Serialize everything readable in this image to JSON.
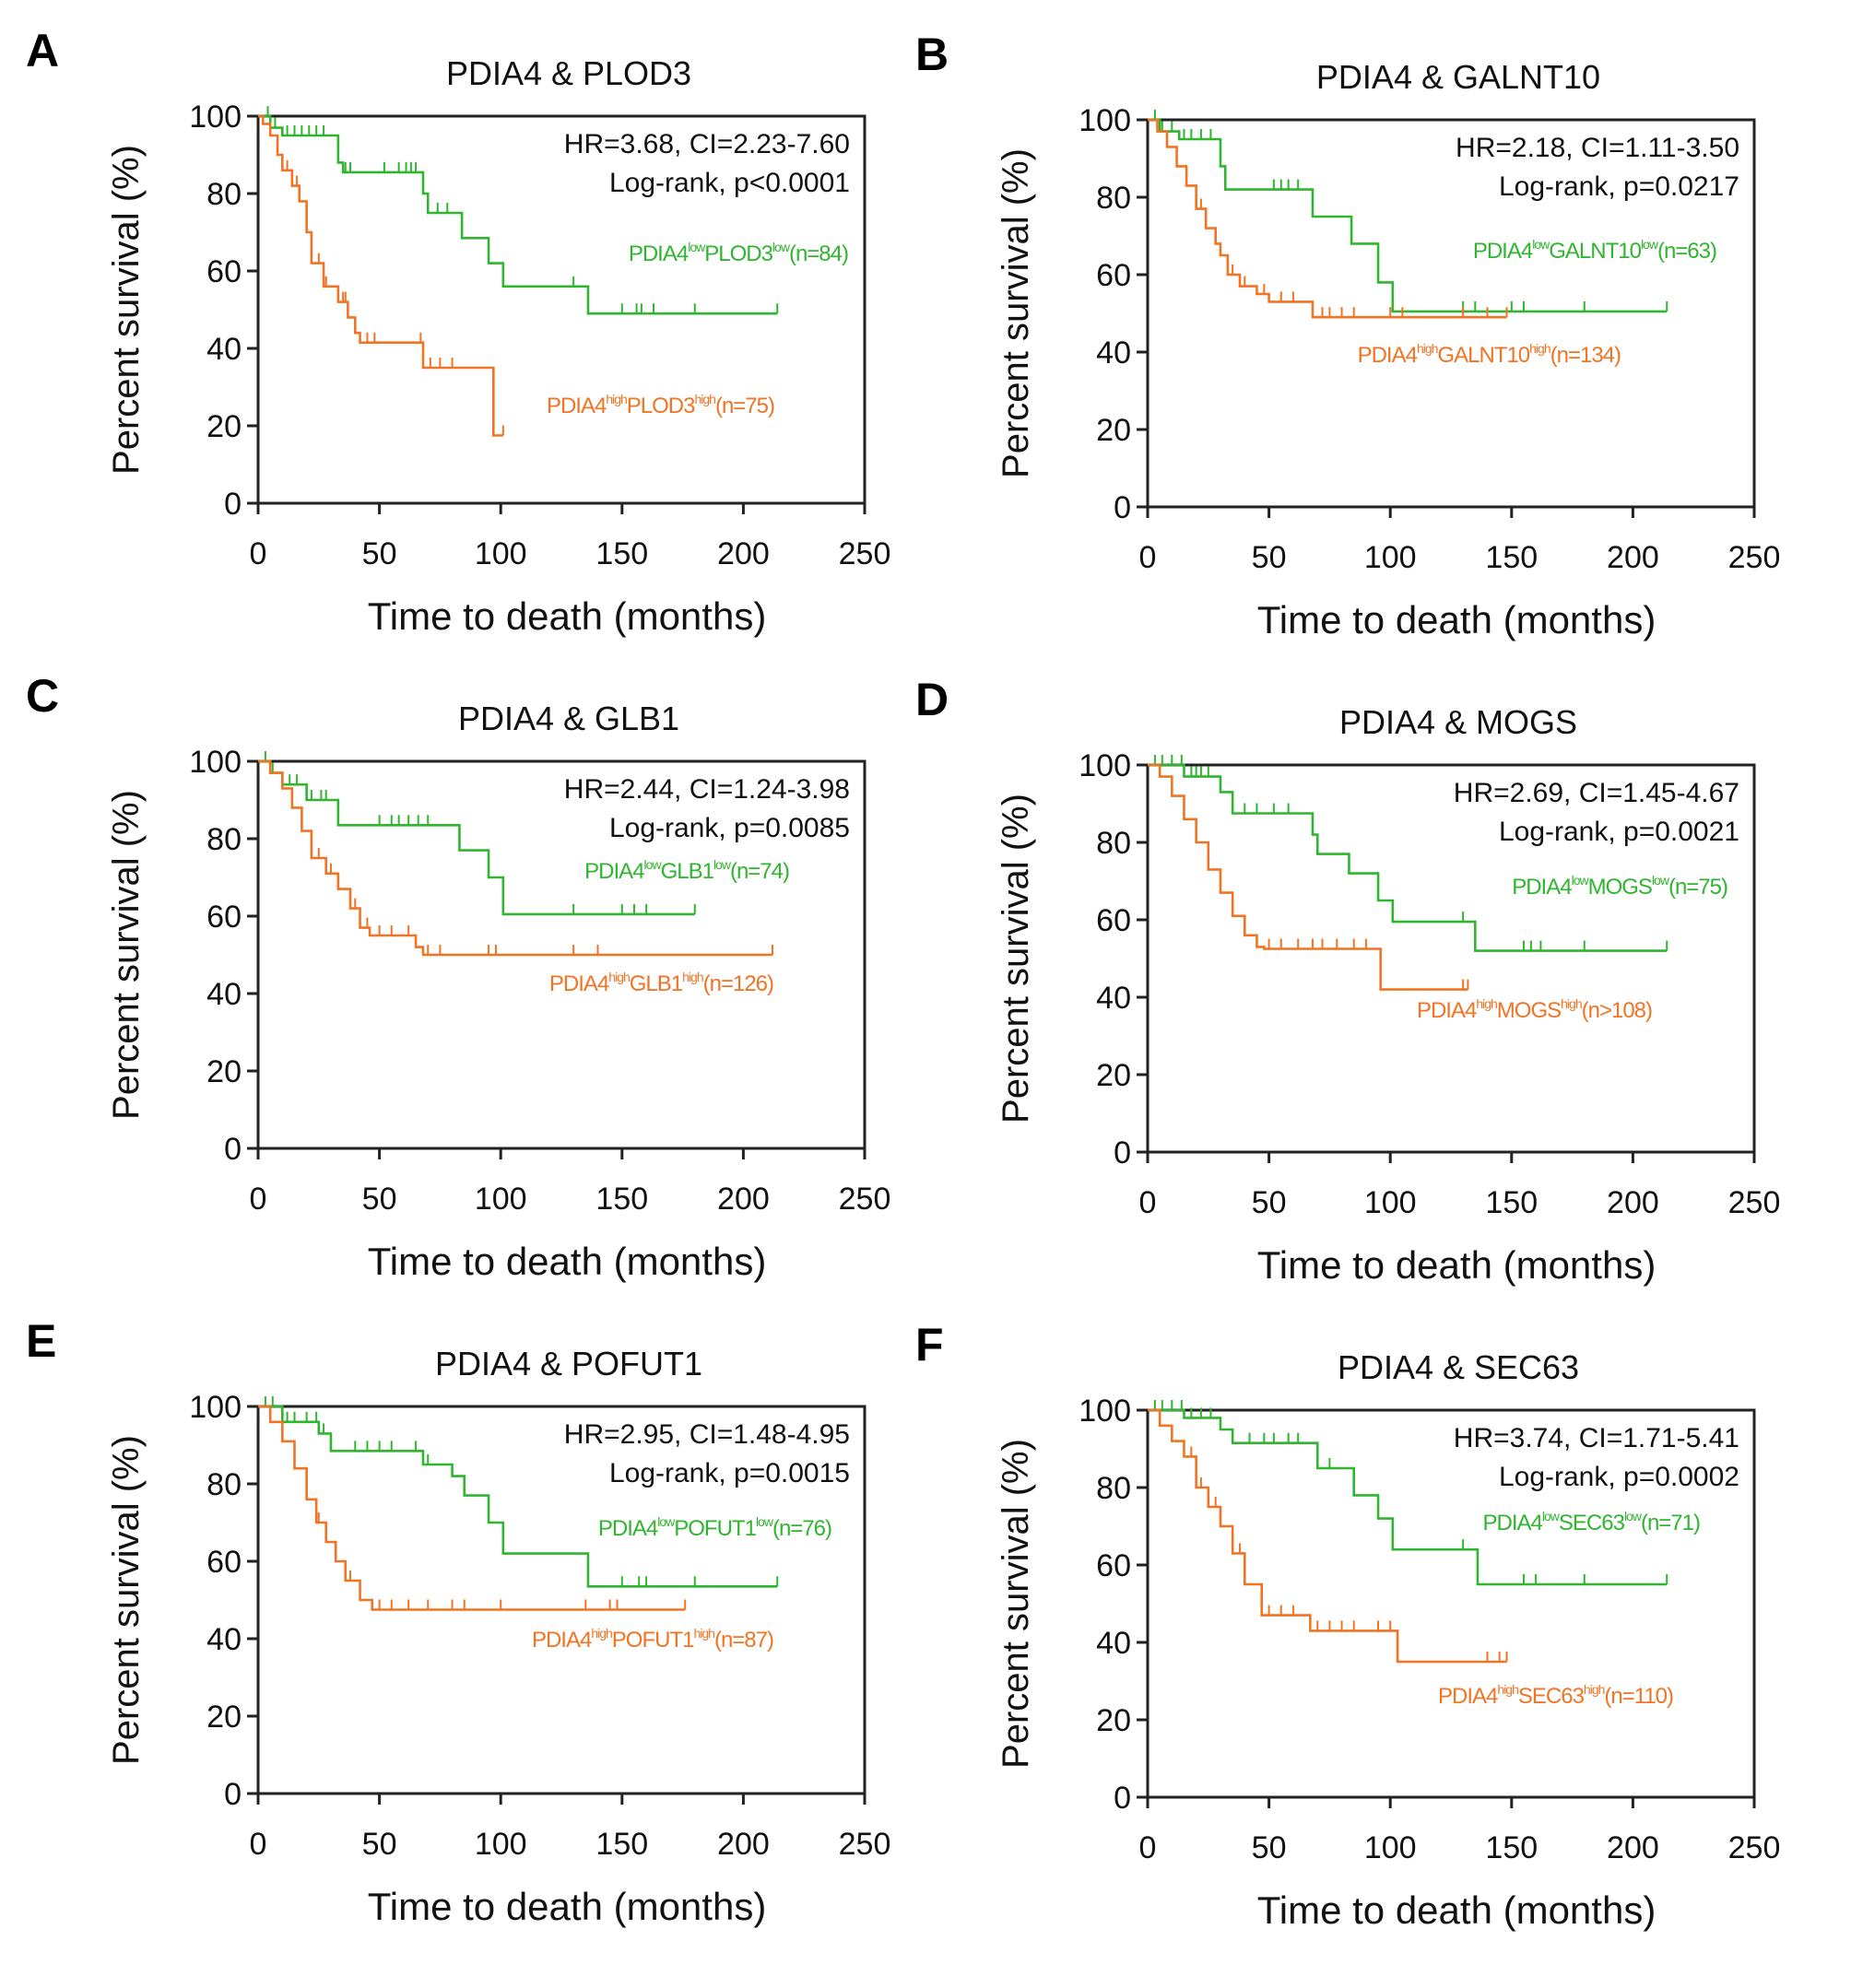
{
  "colors": {
    "low": "#2fb52f",
    "high": "#f07424",
    "axis": "#222222"
  },
  "chart_data": [
    {
      "type": "line",
      "panel": "A",
      "title": "PDIA4 & PLOD3",
      "xlabel": "Time to death (months)",
      "ylabel": "Percent survival (%)",
      "xlim": [
        0,
        250
      ],
      "ylim": [
        0,
        100
      ],
      "xticks": [
        0,
        50,
        100,
        150,
        200,
        250
      ],
      "yticks": [
        0,
        20,
        40,
        60,
        80,
        100
      ],
      "stats": [
        "HR=3.68, CI=2.23-7.60",
        "Log-rank, p<0.0001"
      ],
      "series": [
        {
          "name": "low",
          "label": [
            "PDIA4",
            "low",
            "PLOD3",
            "low",
            "(n=84)"
          ],
          "steps": [
            [
              0,
              100
            ],
            [
              5,
              97
            ],
            [
              10,
              95
            ],
            [
              33,
              88
            ],
            [
              35,
              85.5
            ],
            [
              68,
              80
            ],
            [
              70,
              75
            ],
            [
              84,
              68.5
            ],
            [
              95,
              62
            ],
            [
              101,
              56
            ],
            [
              136,
              49
            ],
            [
              214,
              49
            ]
          ],
          "censored": [
            4,
            7,
            12,
            15,
            18,
            21,
            24,
            27,
            36,
            38,
            52,
            58,
            61,
            63,
            65,
            74,
            78,
            130,
            150,
            156,
            158,
            163,
            180,
            214
          ]
        },
        {
          "name": "high",
          "label": [
            "PDIA4",
            "high",
            "PLOD3",
            "high",
            "(n=75)"
          ],
          "steps": [
            [
              0,
              100
            ],
            [
              2,
              98
            ],
            [
              5,
              95
            ],
            [
              8,
              90
            ],
            [
              10,
              86
            ],
            [
              14,
              82
            ],
            [
              17,
              78
            ],
            [
              20,
              70
            ],
            [
              22,
              62
            ],
            [
              27,
              56
            ],
            [
              33,
              52
            ],
            [
              37,
              48
            ],
            [
              40,
              44
            ],
            [
              42,
              41.5
            ],
            [
              68,
              35
            ],
            [
              97,
              17.5
            ],
            [
              101,
              17.5
            ]
          ],
          "censored": [
            12,
            16,
            25,
            28,
            35,
            36,
            45,
            48,
            67,
            71,
            75,
            80,
            101
          ]
        }
      ]
    },
    {
      "type": "line",
      "panel": "B",
      "title": "PDIA4 & GALNT10",
      "xlabel": "Time to death (months)",
      "ylabel": "Percent survival (%)",
      "xlim": [
        0,
        250
      ],
      "ylim": [
        0,
        100
      ],
      "xticks": [
        0,
        50,
        100,
        150,
        200,
        250
      ],
      "yticks": [
        0,
        20,
        40,
        60,
        80,
        100
      ],
      "stats": [
        "HR=2.18, CI=1.11-3.50",
        "Log-rank, p=0.0217"
      ],
      "series": [
        {
          "name": "low",
          "label": [
            "PDIA4",
            "low",
            "GALNT10",
            "low",
            "(n=63)"
          ],
          "steps": [
            [
              0,
              100
            ],
            [
              5,
              97
            ],
            [
              13,
              95
            ],
            [
              30,
              88
            ],
            [
              32,
              82
            ],
            [
              68,
              75
            ],
            [
              84,
              68
            ],
            [
              95,
              58
            ],
            [
              101,
              50.5
            ],
            [
              214,
              50.5
            ]
          ],
          "censored": [
            3,
            6,
            10,
            15,
            18,
            22,
            26,
            52,
            55,
            58,
            62,
            130,
            135,
            150,
            155,
            180,
            214
          ]
        },
        {
          "name": "high",
          "label": [
            "PDIA4",
            "high",
            "GALNT10",
            "high",
            "(n=134)"
          ],
          "steps": [
            [
              0,
              100
            ],
            [
              4,
              97
            ],
            [
              8,
              93
            ],
            [
              12,
              88
            ],
            [
              16,
              83
            ],
            [
              20,
              77
            ],
            [
              24,
              72
            ],
            [
              28,
              68
            ],
            [
              30,
              65
            ],
            [
              33,
              60
            ],
            [
              38,
              57
            ],
            [
              45,
              55
            ],
            [
              50,
              53
            ],
            [
              68,
              49
            ],
            [
              148,
              49
            ]
          ],
          "censored": [
            22,
            30,
            35,
            40,
            48,
            55,
            60,
            72,
            75,
            80,
            85,
            100,
            105,
            130,
            140,
            148
          ]
        }
      ]
    },
    {
      "type": "line",
      "panel": "C",
      "title": "PDIA4 & GLB1",
      "xlabel": "Time to death (months)",
      "ylabel": "Percent survival (%)",
      "xlim": [
        0,
        250
      ],
      "ylim": [
        0,
        100
      ],
      "xticks": [
        0,
        50,
        100,
        150,
        200,
        250
      ],
      "yticks": [
        0,
        20,
        40,
        60,
        80,
        100
      ],
      "stats": [
        "HR=2.44, CI=1.24-3.98",
        "Log-rank, p=0.0085"
      ],
      "series": [
        {
          "name": "low",
          "label": [
            "PDIA4",
            "low",
            "GLB1",
            "low",
            "(n=74)"
          ],
          "steps": [
            [
              0,
              100
            ],
            [
              5,
              97
            ],
            [
              10,
              94
            ],
            [
              20,
              90
            ],
            [
              33,
              83.5
            ],
            [
              83,
              77
            ],
            [
              95,
              70
            ],
            [
              101,
              60.5
            ],
            [
              180,
              60.5
            ]
          ],
          "censored": [
            3,
            6,
            13,
            16,
            22,
            26,
            28,
            50,
            55,
            58,
            62,
            66,
            70,
            130,
            150,
            155,
            160,
            180
          ]
        },
        {
          "name": "high",
          "label": [
            "PDIA4",
            "high",
            "GLB1",
            "high",
            "(n=126)"
          ],
          "steps": [
            [
              0,
              100
            ],
            [
              5,
              97
            ],
            [
              10,
              93
            ],
            [
              14,
              88
            ],
            [
              18,
              82
            ],
            [
              22,
              75
            ],
            [
              28,
              71
            ],
            [
              33,
              67
            ],
            [
              38,
              62
            ],
            [
              42,
              57
            ],
            [
              46,
              55
            ],
            [
              65,
              52
            ],
            [
              68,
              50
            ],
            [
              212,
              50
            ]
          ],
          "censored": [
            25,
            30,
            40,
            45,
            50,
            55,
            62,
            70,
            75,
            95,
            98,
            130,
            140,
            212
          ]
        }
      ]
    },
    {
      "type": "line",
      "panel": "D",
      "title": "PDIA4 & MOGS",
      "xlabel": "Time to death (months)",
      "ylabel": "Percent survival (%)",
      "xlim": [
        0,
        250
      ],
      "ylim": [
        0,
        100
      ],
      "xticks": [
        0,
        50,
        100,
        150,
        200,
        250
      ],
      "yticks": [
        0,
        20,
        40,
        60,
        80,
        100
      ],
      "stats": [
        "HR=2.69, CI=1.45-4.67",
        "Log-rank, p=0.0021"
      ],
      "series": [
        {
          "name": "low",
          "label": [
            "PDIA4",
            "low",
            "MOGS",
            "low",
            "(n=75)"
          ],
          "steps": [
            [
              0,
              100
            ],
            [
              15,
              97
            ],
            [
              30,
              93
            ],
            [
              35,
              87.5
            ],
            [
              68,
              82
            ],
            [
              70,
              77
            ],
            [
              83,
              72
            ],
            [
              95,
              65
            ],
            [
              101,
              59.5
            ],
            [
              135,
              52
            ],
            [
              214,
              52
            ]
          ],
          "censored": [
            3,
            6,
            10,
            14,
            18,
            20,
            22,
            25,
            40,
            45,
            52,
            58,
            130,
            155,
            158,
            162,
            180,
            214
          ]
        },
        {
          "name": "high",
          "label": [
            "PDIA4",
            "high",
            "MOGS",
            "high",
            "(n>108)"
          ],
          "steps": [
            [
              0,
              100
            ],
            [
              5,
              97
            ],
            [
              10,
              92
            ],
            [
              15,
              86
            ],
            [
              20,
              80
            ],
            [
              25,
              73
            ],
            [
              30,
              67
            ],
            [
              35,
              61
            ],
            [
              40,
              56
            ],
            [
              45,
              53
            ],
            [
              48,
              52.5
            ],
            [
              96,
              42
            ],
            [
              132,
              42
            ]
          ],
          "censored": [
            30,
            35,
            45,
            50,
            55,
            62,
            68,
            72,
            78,
            85,
            90,
            130,
            132
          ]
        }
      ]
    },
    {
      "type": "line",
      "panel": "E",
      "title": "PDIA4 & POFUT1",
      "xlabel": "Time to death (months)",
      "ylabel": "Percent survival (%)",
      "xlim": [
        0,
        250
      ],
      "ylim": [
        0,
        100
      ],
      "xticks": [
        0,
        50,
        100,
        150,
        200,
        250
      ],
      "yticks": [
        0,
        20,
        40,
        60,
        80,
        100
      ],
      "stats": [
        "HR=2.95, CI=1.48-4.95",
        "Log-rank, p=0.0015"
      ],
      "series": [
        {
          "name": "low",
          "label": [
            "PDIA4",
            "low",
            "POFUT1",
            "low",
            "(n=76)"
          ],
          "steps": [
            [
              0,
              100
            ],
            [
              10,
              96
            ],
            [
              25,
              93
            ],
            [
              30,
              88.5
            ],
            [
              68,
              85
            ],
            [
              80,
              82
            ],
            [
              85,
              77
            ],
            [
              95,
              70
            ],
            [
              101,
              62
            ],
            [
              136,
              53.5
            ],
            [
              214,
              53.5
            ]
          ],
          "censored": [
            3,
            6,
            12,
            15,
            20,
            24,
            27,
            40,
            45,
            50,
            55,
            65,
            70,
            150,
            157,
            160,
            180,
            214
          ]
        },
        {
          "name": "high",
          "label": [
            "PDIA4",
            "high",
            "POFUT1",
            "high",
            "(n=87)"
          ],
          "steps": [
            [
              0,
              100
            ],
            [
              5,
              96
            ],
            [
              10,
              91
            ],
            [
              15,
              84
            ],
            [
              20,
              76
            ],
            [
              24,
              70
            ],
            [
              28,
              65
            ],
            [
              32,
              60
            ],
            [
              36,
              55
            ],
            [
              42,
              50
            ],
            [
              47,
              47.5
            ],
            [
              176,
              47.5
            ]
          ],
          "censored": [
            25,
            28,
            38,
            50,
            55,
            62,
            70,
            80,
            85,
            100,
            135,
            145,
            148,
            176
          ]
        }
      ]
    },
    {
      "type": "line",
      "panel": "F",
      "title": "PDIA4 & SEC63",
      "xlabel": "Time to death (months)",
      "ylabel": "Percent survival (%)",
      "xlim": [
        0,
        250
      ],
      "ylim": [
        0,
        100
      ],
      "xticks": [
        0,
        50,
        100,
        150,
        200,
        250
      ],
      "yticks": [
        0,
        20,
        40,
        60,
        80,
        100
      ],
      "stats": [
        "HR=3.74, CI=1.71-5.41",
        "Log-rank, p=0.0002"
      ],
      "series": [
        {
          "name": "low",
          "label": [
            "PDIA4",
            "low",
            "SEC63",
            "low",
            "(n=71)"
          ],
          "steps": [
            [
              0,
              100
            ],
            [
              15,
              98
            ],
            [
              30,
              95
            ],
            [
              35,
              91.5
            ],
            [
              70,
              85
            ],
            [
              85,
              78
            ],
            [
              95,
              72
            ],
            [
              101,
              64
            ],
            [
              136,
              55
            ],
            [
              214,
              55
            ]
          ],
          "censored": [
            3,
            6,
            10,
            14,
            18,
            22,
            26,
            42,
            48,
            52,
            58,
            62,
            75,
            130,
            155,
            160,
            180,
            214
          ]
        },
        {
          "name": "high",
          "label": [
            "PDIA4",
            "high",
            "SEC63",
            "high",
            "(n=110)"
          ],
          "steps": [
            [
              0,
              100
            ],
            [
              5,
              96
            ],
            [
              10,
              92
            ],
            [
              15,
              88
            ],
            [
              20,
              80
            ],
            [
              25,
              75
            ],
            [
              30,
              70
            ],
            [
              35,
              63
            ],
            [
              40,
              55
            ],
            [
              47,
              47
            ],
            [
              67,
              43
            ],
            [
              103,
              35
            ],
            [
              148,
              35
            ]
          ],
          "censored": [
            18,
            22,
            28,
            38,
            50,
            55,
            60,
            70,
            75,
            80,
            85,
            95,
            100,
            140,
            145,
            148
          ]
        }
      ]
    }
  ]
}
